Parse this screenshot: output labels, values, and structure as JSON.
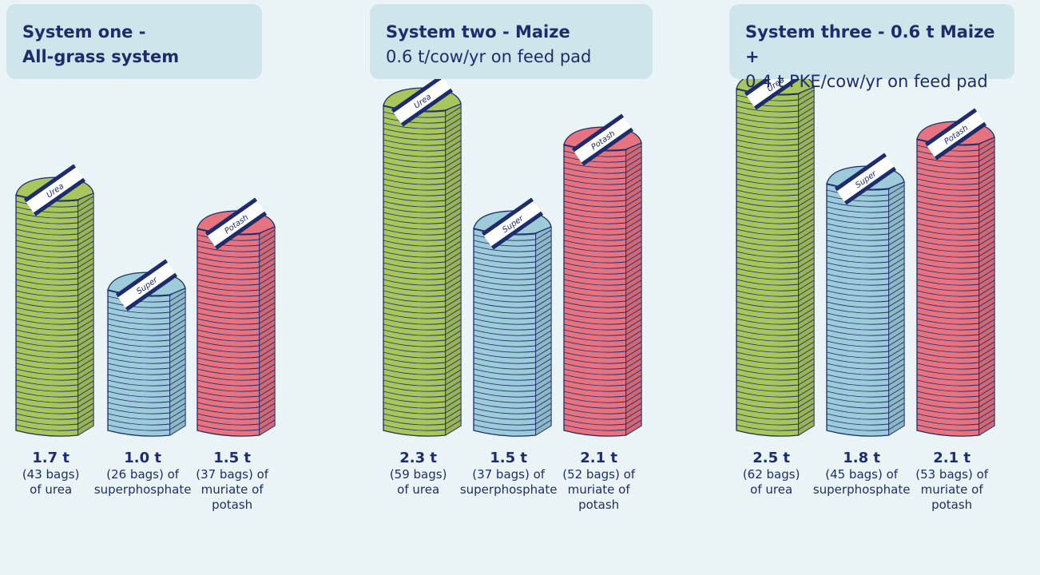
{
  "chart_data": [
    {
      "type": "bag-stack",
      "title": "System one -",
      "subtitle": "All-grass system",
      "subtitle_weight": "bold",
      "series": [
        {
          "name": "Urea",
          "color": "#a9c65d",
          "values": [
            43
          ],
          "tonnes_label": "1.7 t",
          "value_labels": [
            "(43 bags) of urea"
          ]
        },
        {
          "name": "Super",
          "color": "#9dcbd9",
          "values": [
            26
          ],
          "tonnes_label": "1.0 t",
          "value_labels": [
            "(26 bags) of superphosphate"
          ]
        },
        {
          "name": "Potash",
          "color": "#e6737f",
          "values": [
            37
          ],
          "tonnes_label": "1.5 t",
          "value_labels": [
            "(37 bags) of muriate of potash"
          ]
        }
      ]
    },
    {
      "type": "bag-stack",
      "title": "System two - Maize",
      "subtitle": "0.6 t/cow/yr on feed pad",
      "subtitle_weight": "normal",
      "series": [
        {
          "name": "Urea",
          "color": "#a9c65d",
          "values": [
            59
          ],
          "tonnes_label": "2.3 t",
          "value_labels": [
            "(59 bags) of urea"
          ]
        },
        {
          "name": "Super",
          "color": "#9dcbd9",
          "values": [
            37
          ],
          "tonnes_label": "1.5 t",
          "value_labels": [
            "(37 bags) of superphosphate"
          ]
        },
        {
          "name": "Potash",
          "color": "#e6737f",
          "values": [
            52
          ],
          "tonnes_label": "2.1 t",
          "value_labels": [
            "(52 bags) of muriate of potash"
          ]
        }
      ]
    },
    {
      "type": "bag-stack",
      "title": "System three - 0.6 t Maize +",
      "subtitle": "0.4 t PKE/cow/yr on feed pad",
      "subtitle_weight": "normal",
      "series": [
        {
          "name": "Urea",
          "color": "#a9c65d",
          "values": [
            62
          ],
          "tonnes_label": "2.5 t",
          "value_labels": [
            "(62 bags) of urea"
          ]
        },
        {
          "name": "Super",
          "color": "#9dcbd9",
          "values": [
            45
          ],
          "tonnes_label": "1.8 t",
          "value_labels": [
            "(45 bags) of superphosphate"
          ]
        },
        {
          "name": "Potash",
          "color": "#e6737f",
          "values": [
            53
          ],
          "tonnes_label": "2.1 t",
          "value_labels": [
            "(53 bags) of muriate of potash"
          ]
        }
      ]
    }
  ]
}
